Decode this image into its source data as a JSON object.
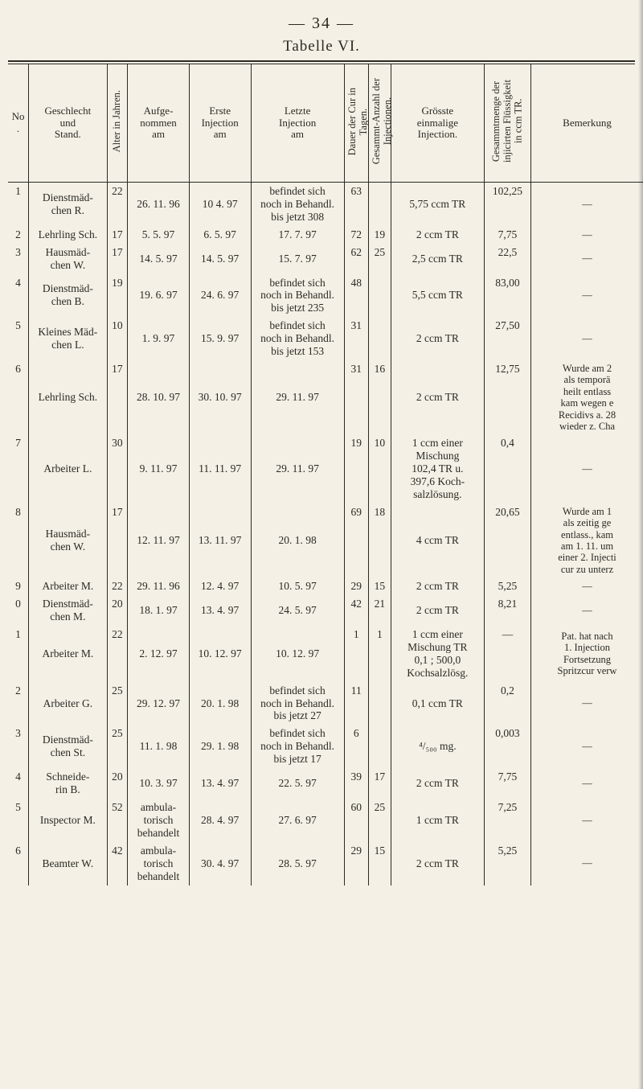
{
  "page_label": "— 34 —",
  "table_title": "Tabelle VI.",
  "columns": {
    "no": "No.",
    "stand": "Geschlecht\nund\nStand.",
    "alter": "Alter in Jahren.",
    "aufge": "Aufge-\nnommen\nam",
    "erste": "Erste\nInjection\nam",
    "letzte": "Letzte\nInjection\nam",
    "dauer": "Dauer der Cur in\nTagen.",
    "anz": "Gesammt-Anzahl der\nInjectionen.",
    "gross": "Grösste\neinmalige\nInjection.",
    "menge": "Gesammtmenge der\ninjicirten Flüssigkeit\nin ccm TR.",
    "bem": "Bemerkung"
  },
  "rows": [
    {
      "no": "1",
      "stand": "Dienstmäd-\nchen R.",
      "alter": "22",
      "aufge": "26. 11. 96",
      "erste": "10 4. 97",
      "letzte": "befindet sich\nnoch in Behandl.\nbis jetzt 308",
      "dauer": "63",
      "anz": "",
      "gross": "5,75 ccm TR",
      "menge": "102,25",
      "bem": "—"
    },
    {
      "no": "2",
      "stand": "Lehrling Sch.",
      "alter": "17",
      "aufge": "5. 5. 97",
      "erste": "6. 5. 97",
      "letzte": "17. 7. 97",
      "dauer": "72",
      "anz": "19",
      "gross": "2 ccm TR",
      "menge": "7,75",
      "bem": "—"
    },
    {
      "no": "3",
      "stand": "Hausmäd-\nchen W.",
      "alter": "17",
      "aufge": "14. 5. 97",
      "erste": "14. 5. 97",
      "letzte": "15. 7. 97",
      "dauer": "62",
      "anz": "25",
      "gross": "2,5 ccm TR",
      "menge": "22,5",
      "bem": "—"
    },
    {
      "no": "4",
      "stand": "Dienstmäd-\nchen B.",
      "alter": "19",
      "aufge": "19. 6. 97",
      "erste": "24. 6. 97",
      "letzte": "befindet sich\nnoch in Behandl.\nbis jetzt 235",
      "dauer": "48",
      "anz": "",
      "gross": "5,5 ccm TR",
      "menge": "83,00",
      "bem": "—"
    },
    {
      "no": "5",
      "stand": "Kleines Mäd-\nchen L.",
      "alter": "10",
      "aufge": "1. 9. 97",
      "erste": "15. 9. 97",
      "letzte": "befindet sich\nnoch in Behandl.\nbis jetzt 153",
      "dauer": "31",
      "anz": "",
      "gross": "2 ccm TR",
      "menge": "27,50",
      "bem": "—"
    },
    {
      "no": "6",
      "stand": "Lehrling Sch.",
      "alter": "17",
      "aufge": "28. 10. 97",
      "erste": "30. 10. 97",
      "letzte": "29. 11. 97",
      "dauer": "31",
      "anz": "16",
      "gross": "2 ccm TR",
      "menge": "12,75",
      "bem": "Wurde am 2\nals temporä\nheilt entlass\nkam wegen e\nRecidivs a. 28\nwieder z. Cha"
    },
    {
      "no": "7",
      "stand": "Arbeiter L.",
      "alter": "30",
      "aufge": "9. 11. 97",
      "erste": "11. 11. 97",
      "letzte": "29. 11. 97",
      "dauer": "19",
      "anz": "10",
      "gross": "1 ccm einer\nMischung\n102,4 TR u.\n397,6 Koch-\nsalzlösung.",
      "menge": "0,4",
      "bem": "—"
    },
    {
      "no": "8",
      "stand": "Hausmäd-\nchen W.",
      "alter": "17",
      "aufge": "12. 11. 97",
      "erste": "13. 11. 97",
      "letzte": "20. 1. 98",
      "dauer": "69",
      "anz": "18",
      "gross": "4 ccm TR",
      "menge": "20,65",
      "bem": "Wurde am 1\nals zeitig ge\nentlass., kam\nam 1. 11. um\neiner 2. Injecti\ncur zu unterz"
    },
    {
      "no": "9",
      "stand": "Arbeiter M.",
      "alter": "22",
      "aufge": "29. 11. 96",
      "erste": "12. 4. 97",
      "letzte": "10. 5. 97",
      "dauer": "29",
      "anz": "15",
      "gross": "2 ccm TR",
      "menge": "5,25",
      "bem": "—"
    },
    {
      "no": "0",
      "stand": "Dienstmäd-\nchen M.",
      "alter": "20",
      "aufge": "18. 1. 97",
      "erste": "13. 4. 97",
      "letzte": "24. 5. 97",
      "dauer": "42",
      "anz": "21",
      "gross": "2 ccm TR",
      "menge": "8,21",
      "bem": "—"
    },
    {
      "no": "1",
      "stand": "Arbeiter M.",
      "alter": "22",
      "aufge": "2. 12. 97",
      "erste": "10. 12. 97",
      "letzte": "10. 12. 97",
      "dauer": "1",
      "anz": "1",
      "gross": "1 ccm einer\nMischung TR\n0,1 ; 500,0\nKochsalzlösg.",
      "menge": "—",
      "bem": "Pat. hat nach\n1. Injection\nFortsetzung\nSpritzcur verw"
    },
    {
      "no": "2",
      "stand": "Arbeiter G.",
      "alter": "25",
      "aufge": "29. 12. 97",
      "erste": "20. 1. 98",
      "letzte": "befindet sich\nnoch in Behandl.\nbis jetzt 27",
      "dauer": "11",
      "anz": "",
      "gross": "0,1 ccm TR",
      "menge": "0,2",
      "bem": "—"
    },
    {
      "no": "3",
      "stand": "Dienstmäd-\nchen St.",
      "alter": "25",
      "aufge": "11. 1. 98",
      "erste": "29. 1. 98",
      "letzte": "befindet sich\nnoch in Behandl.\nbis jetzt 17",
      "dauer": "6",
      "anz": "",
      "gross": "⁴/₅₀₀ mg.",
      "menge": "0,003",
      "bem": "—"
    },
    {
      "no": "4",
      "stand": "Schneide-\nrin B.",
      "alter": "20",
      "aufge": "10. 3. 97",
      "erste": "13. 4. 97",
      "letzte": "22. 5. 97",
      "dauer": "39",
      "anz": "17",
      "gross": "2 ccm TR",
      "menge": "7,75",
      "bem": "—"
    },
    {
      "no": "5",
      "stand": "Inspector M.",
      "alter": "52",
      "aufge": "ambula-\ntorisch\nbehandelt",
      "erste": "28. 4. 97",
      "letzte": "27. 6. 97",
      "dauer": "60",
      "anz": "25",
      "gross": "1 ccm TR",
      "menge": "7,25",
      "bem": "—"
    },
    {
      "no": "6",
      "stand": "Beamter W.",
      "alter": "42",
      "aufge": "ambula-\ntorisch\nbehandelt",
      "erste": "30. 4. 97",
      "letzte": "28. 5. 97",
      "dauer": "29",
      "anz": "15",
      "gross": "2 ccm TR",
      "menge": "5,25",
      "bem": "—"
    }
  ],
  "style": {
    "background": "#f4f0e6",
    "text_color": "#2a2a24",
    "rule_color": "#2a2a24",
    "body_font_size_pt": 10,
    "header_font_size_pt": 10
  }
}
